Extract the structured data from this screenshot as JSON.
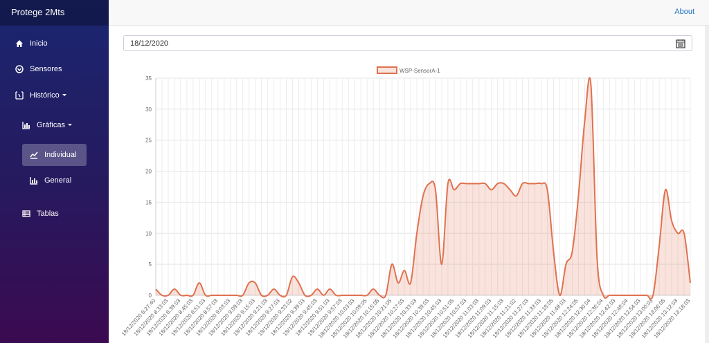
{
  "sidebar": {
    "brand": "Protege 2Mts",
    "items": [
      "Inicio",
      "Sensores",
      "Histórico",
      "Gráficas",
      "Individual",
      "General",
      "Tablas"
    ]
  },
  "header": {
    "link": "About"
  },
  "date_input": {
    "value": "18/12/2020"
  },
  "chart_data": {
    "type": "line",
    "categories": [
      "18/12/2020 8:27:40",
      null,
      "18/12/2020 8:33:03",
      null,
      "18/12/2020 8:39:03",
      null,
      "18/12/2020 8:45:03",
      null,
      "18/12/2020 8:51:03",
      null,
      "18/12/2020 8:57:03",
      null,
      "18/12/2020 9:03:03",
      null,
      "18/12/2020 9:09:03",
      null,
      "18/12/2020 9:15:03",
      null,
      "18/12/2020 9:21:03",
      null,
      "18/12/2020 9:27:03",
      null,
      "18/12/2020 9:33:02",
      null,
      "18/12/2020 9:39:03",
      null,
      "18/12/2020 9:45:03",
      null,
      "18/12/2020 9:51:03",
      null,
      "18/12/2020 9:57:03",
      null,
      "18/12/2020 10:03:03",
      null,
      "18/12/2020 10:09:05",
      null,
      "18/12/2020 10:15:05",
      null,
      "18/12/2020 10:21:05",
      null,
      "18/12/2020 10:27:03",
      null,
      "18/12/2020 10:33:03",
      null,
      "18/12/2020 10:39:03",
      null,
      "18/12/2020 10:45:03",
      null,
      "18/12/2020 10:51:05",
      null,
      "18/12/2020 10:57:03",
      null,
      "18/12/2020 11:03:03",
      null,
      "18/12/2020 11:09:03",
      null,
      "18/12/2020 11:15:03",
      null,
      "18/12/2020 11:21:02",
      null,
      "18/12/2020 11:27:03",
      null,
      "18/12/2020 11:33:03",
      null,
      "18/12/2020 11:18:05",
      null,
      "18/12/2020 11:48:03",
      null,
      "18/12/2020 12:24:05",
      null,
      "18/12/2020 12:30:04",
      null,
      "18/12/2020 12:36:04",
      null,
      "18/12/2020 12:42:03",
      null,
      "18/12/2020 12:48:04",
      null,
      "18/12/2020 12:54:03",
      null,
      "18/12/2020 13:00:03",
      null,
      "18/12/2020 13:06:05",
      null,
      "18/12/2020 13:12:03",
      null,
      "18/12/2020 13:18:03"
    ],
    "series": [
      {
        "name": "WSP-SensorA-1",
        "color": "#e0714f",
        "values": [
          1,
          0,
          0,
          1,
          0,
          0,
          0,
          2,
          0,
          0,
          0,
          0,
          0,
          0,
          0,
          2,
          2,
          0,
          0,
          1,
          0,
          0,
          3,
          2,
          0,
          0,
          1,
          0,
          1,
          0,
          0,
          0,
          0,
          0,
          0,
          1,
          0,
          0,
          5,
          2,
          4,
          2,
          10,
          16,
          18,
          17,
          5,
          18,
          17,
          18,
          18,
          18,
          18,
          18,
          17,
          18,
          18,
          17,
          16,
          18,
          18,
          18,
          18,
          17,
          7,
          0,
          5,
          7,
          16,
          28,
          34,
          6,
          0,
          0,
          0,
          0,
          0,
          0,
          0,
          0,
          0,
          8,
          17,
          12,
          10,
          10,
          2
        ]
      }
    ],
    "ylim": [
      0,
      35
    ],
    "yticks": [
      0,
      5,
      10,
      15,
      20,
      25,
      30,
      35
    ],
    "grid": true,
    "legend": "top"
  }
}
